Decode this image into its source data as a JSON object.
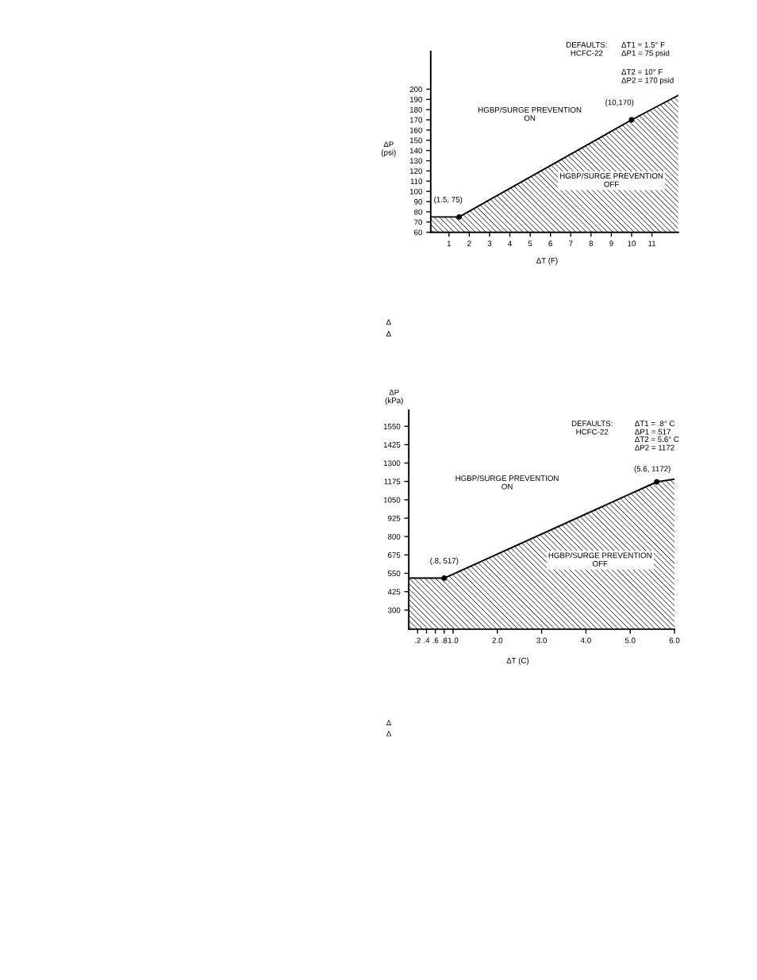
{
  "chart_data": [
    {
      "type": "area",
      "xlabel": "ΔT (F)",
      "ylabel": "ΔP\n(psi)",
      "series": [
        {
          "color": "#000000",
          "x": [
            0.1,
            1.5,
            10,
            12.3
          ],
          "values": [
            75,
            75,
            170,
            194
          ]
        },
        {
          "type": "scatter",
          "color": "#000000",
          "marker": "circle",
          "x": [
            1.5,
            10
          ],
          "values": [
            75,
            170
          ]
        }
      ],
      "xlim": [
        0.1,
        12.3
      ],
      "xticks": [
        1,
        2,
        3,
        4,
        5,
        6,
        7,
        8,
        9,
        10,
        11
      ],
      "ylim": [
        60,
        237
      ],
      "yticks": [
        60,
        70,
        80,
        90,
        100,
        110,
        120,
        130,
        140,
        150,
        160,
        170,
        180,
        190,
        200
      ],
      "grid": false,
      "annotations": [
        "DEFAULTS:\nHCFC-22",
        "ΔT1 = 1.5° F\nΔP1 = 75 psid",
        "ΔT2 = 10° F\nΔP2 = 170 psid",
        "HGBP/SURGE PREVENTION\nON",
        "HGBP/SURGE PREVENTION\nOFF",
        "Δ",
        "Δ",
        {
          "text": "(1.5, 75)",
          "x": 1.5,
          "y": 75
        },
        {
          "text": "(10,170)",
          "x": 10,
          "y": 170
        }
      ]
    },
    {
      "type": "area",
      "xlabel": "ΔT (C)",
      "ylabel": "ΔP\n(kPa)",
      "series": [
        {
          "color": "#000000",
          "x": [
            0,
            0.8,
            5.6,
            6.0
          ],
          "values": [
            517,
            517,
            1172,
            1190
          ]
        },
        {
          "type": "scatter",
          "color": "#000000",
          "marker": "circle",
          "x": [
            0.8,
            5.6
          ],
          "values": [
            517,
            1172
          ]
        }
      ],
      "xlim": [
        0,
        6.0
      ],
      "xticks": [
        {
          "value": 0.2,
          "label": ".2"
        },
        {
          "value": 0.4,
          "label": ".4"
        },
        {
          "value": 0.6,
          "label": ".6"
        },
        {
          "value": 0.8,
          "label": ".8"
        },
        {
          "value": 1.0,
          "label": "1.0"
        },
        {
          "value": 2.0,
          "label": "2.0"
        },
        {
          "value": 3.0,
          "label": "3.0"
        },
        {
          "value": 4.0,
          "label": "4.0"
        },
        {
          "value": 5.0,
          "label": "5.0"
        },
        {
          "value": 6.0,
          "label": "6.0"
        }
      ],
      "ylim": [
        170,
        1660
      ],
      "yticks": [
        300,
        425,
        550,
        675,
        800,
        925,
        1050,
        1175,
        1300,
        1425,
        1550
      ],
      "grid": false,
      "annotations": [
        "DEFAULTS:\nHCFC-22",
        "ΔT1 = .8° C\nΔP1 = 517",
        "ΔT2 = 5.6° C\nΔP2 = 1172",
        "HGBP/SURGE PREVENTION\nON",
        "HGBP/SURGE PREVENTION\nOFF",
        "Δ",
        "Δ",
        {
          "text": "(.8, 517)",
          "x": 0.8,
          "y": 517
        },
        {
          "text": "(5.6, 1172)",
          "x": 5.6,
          "y": 1172
        }
      ]
    }
  ]
}
